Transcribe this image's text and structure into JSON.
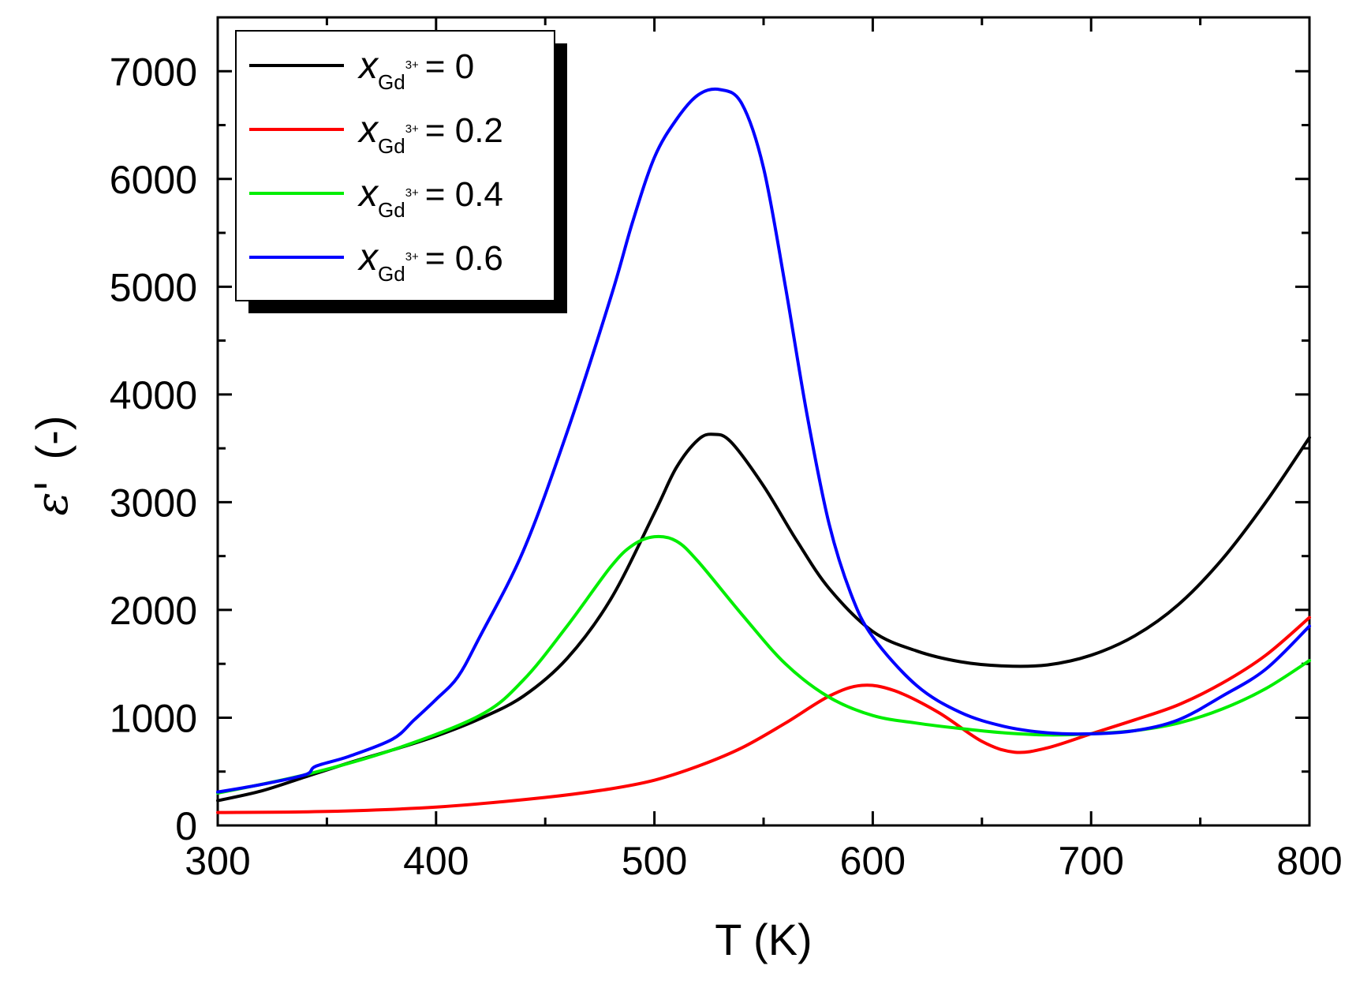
{
  "chart_data": {
    "type": "line",
    "title": "",
    "xlabel": "T (K)",
    "ylabel_symbol": "ε'",
    "ylabel_unit": "(-)",
    "xlim": [
      300,
      800
    ],
    "ylim": [
      0,
      7500
    ],
    "x_ticks": [
      300,
      400,
      500,
      600,
      700,
      800
    ],
    "y_ticks": [
      0,
      1000,
      2000,
      3000,
      4000,
      5000,
      6000,
      7000
    ],
    "x_tick_labels": [
      "300",
      "400",
      "500",
      "600",
      "700",
      "800"
    ],
    "y_tick_labels": [
      "0",
      "1000",
      "2000",
      "3000",
      "4000",
      "5000",
      "6000",
      "7000"
    ],
    "grid": false,
    "legend_position": "top-left",
    "legend_var": "x",
    "legend_sub": "Gd",
    "legend_sup": "3+",
    "series": [
      {
        "name": "x_Gd3+ = 0",
        "legend_value": "= 0",
        "color": "#000000",
        "x": [
          300,
          320,
          340,
          360,
          380,
          400,
          420,
          440,
          460,
          480,
          500,
          510,
          520,
          527,
          535,
          550,
          565,
          580,
          600,
          620,
          640,
          660,
          680,
          700,
          720,
          740,
          760,
          780,
          800
        ],
        "y": [
          230,
          320,
          450,
          580,
          700,
          830,
          990,
          1200,
          1550,
          2100,
          2900,
          3320,
          3580,
          3630,
          3560,
          3150,
          2650,
          2200,
          1800,
          1620,
          1520,
          1480,
          1490,
          1580,
          1760,
          2050,
          2470,
          3000,
          3600
        ]
      },
      {
        "name": "x_Gd3+ = 0.2",
        "legend_value": "= 0.2",
        "color": "#ff0000",
        "x": [
          300,
          350,
          400,
          450,
          480,
          500,
          520,
          540,
          560,
          580,
          595,
          610,
          630,
          650,
          665,
          680,
          700,
          720,
          740,
          760,
          780,
          800
        ],
        "y": [
          120,
          130,
          170,
          260,
          340,
          420,
          550,
          720,
          950,
          1200,
          1300,
          1250,
          1050,
          780,
          680,
          720,
          850,
          980,
          1120,
          1320,
          1580,
          1930
        ]
      },
      {
        "name": "x_Gd3+ = 0.4",
        "legend_value": "= 0.4",
        "color": "#00ee00",
        "x": [
          300,
          340,
          380,
          420,
          440,
          460,
          480,
          490,
          500,
          510,
          520,
          540,
          560,
          580,
          600,
          620,
          640,
          660,
          680,
          700,
          720,
          740,
          760,
          780,
          800
        ],
        "y": [
          300,
          470,
          700,
          1020,
          1350,
          1850,
          2400,
          2600,
          2680,
          2640,
          2450,
          1960,
          1500,
          1190,
          1020,
          950,
          900,
          860,
          840,
          850,
          880,
          950,
          1080,
          1270,
          1530
        ]
      },
      {
        "name": "x_Gd3+ = 0.6",
        "legend_value": "= 0.6",
        "color": "#0000ff",
        "x": [
          300,
          320,
          340,
          345,
          360,
          380,
          390,
          400,
          410,
          420,
          440,
          460,
          480,
          490,
          500,
          510,
          520,
          530,
          540,
          550,
          560,
          570,
          580,
          590,
          600,
          620,
          640,
          660,
          680,
          700,
          720,
          740,
          760,
          780,
          800
        ],
        "y": [
          310,
          380,
          470,
          550,
          640,
          800,
          980,
          1170,
          1380,
          1750,
          2550,
          3650,
          4900,
          5600,
          6200,
          6550,
          6780,
          6830,
          6700,
          6100,
          5000,
          3800,
          2800,
          2150,
          1750,
          1300,
          1050,
          920,
          860,
          850,
          880,
          980,
          1200,
          1450,
          1850
        ]
      }
    ]
  }
}
